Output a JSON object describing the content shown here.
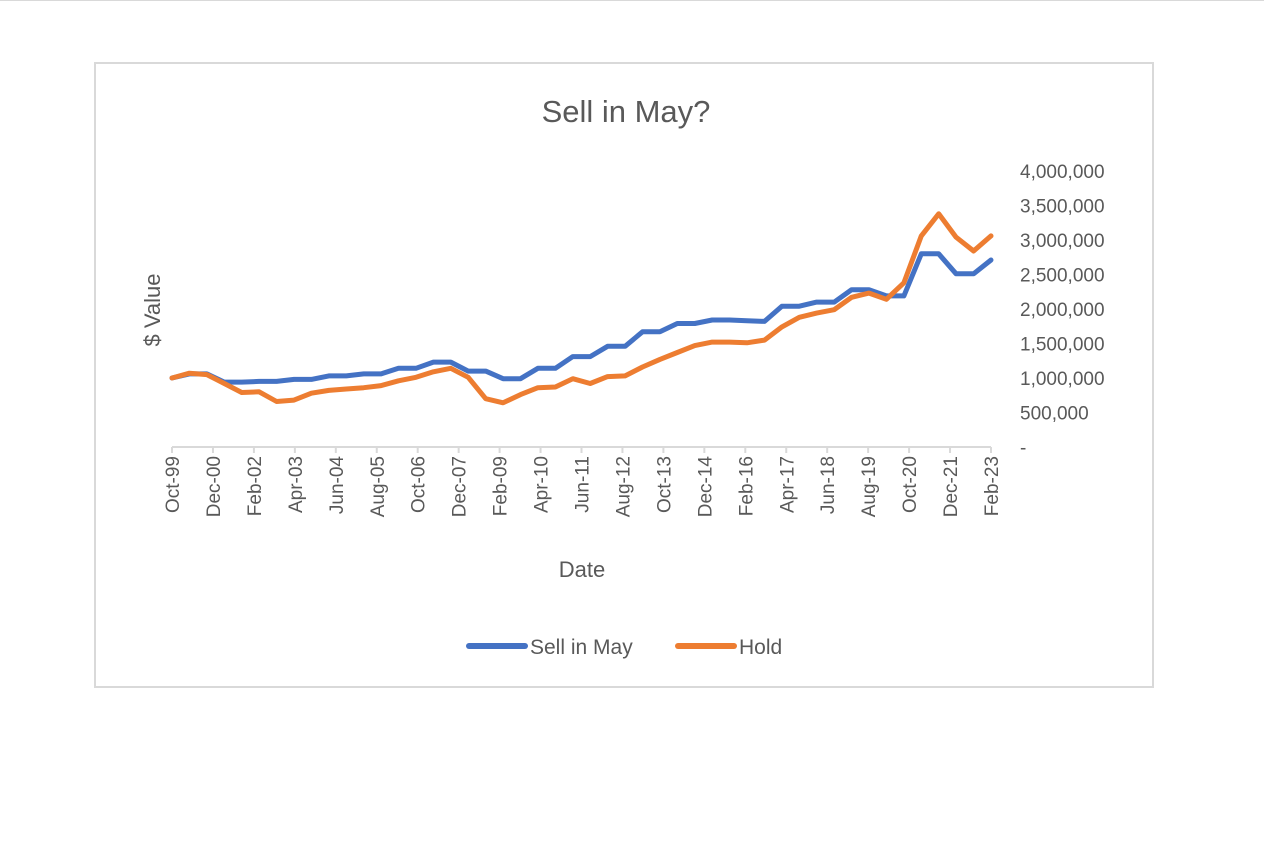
{
  "chart_data": {
    "type": "line",
    "title": "Sell in May?",
    "xlabel": "Date",
    "ylabel": "$ Value",
    "ylim": [
      0,
      4000000
    ],
    "y_ticks": [
      0,
      500000,
      1000000,
      1500000,
      2000000,
      2500000,
      3000000,
      3500000,
      4000000
    ],
    "y_tick_labels": [
      "-",
      "500,000",
      "1,000,000",
      "1,500,000",
      "2,000,000",
      "2,500,000",
      "3,000,000",
      "3,500,000",
      "4,000,000"
    ],
    "y_axis_side": "right",
    "grid": false,
    "legend_position": "bottom",
    "x_tick_labels": [
      "Oct-99",
      "Dec-00",
      "Feb-02",
      "Apr-03",
      "Jun-04",
      "Aug-05",
      "Oct-06",
      "Dec-07",
      "Feb-09",
      "Apr-10",
      "Jun-11",
      "Aug-12",
      "Oct-13",
      "Dec-14",
      "Feb-16",
      "Apr-17",
      "Jun-18",
      "Aug-19",
      "Oct-20",
      "Dec-21",
      "Feb-23"
    ],
    "x": [
      "Oct-99",
      "Apr-00",
      "Oct-00",
      "Apr-01",
      "Oct-01",
      "Apr-02",
      "Oct-02",
      "Apr-03",
      "Oct-03",
      "Apr-04",
      "Oct-04",
      "Apr-05",
      "Oct-05",
      "Apr-06",
      "Oct-06",
      "Apr-07",
      "Oct-07",
      "Apr-08",
      "Oct-08",
      "Apr-09",
      "Oct-09",
      "Apr-10",
      "Oct-10",
      "Apr-11",
      "Oct-11",
      "Apr-12",
      "Oct-12",
      "Apr-13",
      "Oct-13",
      "Apr-14",
      "Oct-14",
      "Apr-15",
      "Oct-15",
      "Apr-16",
      "Oct-16",
      "Apr-17",
      "Oct-17",
      "Apr-18",
      "Oct-18",
      "Apr-19",
      "Oct-19",
      "Apr-20",
      "Oct-20",
      "Apr-21",
      "Oct-21",
      "Apr-22",
      "Oct-22",
      "Apr-23"
    ],
    "series": [
      {
        "name": "Sell in May",
        "color": "#4472C4",
        "values": [
          1000000,
          1060000,
          1060000,
          940000,
          940000,
          950000,
          950000,
          980000,
          980000,
          1030000,
          1030000,
          1060000,
          1060000,
          1140000,
          1140000,
          1230000,
          1230000,
          1100000,
          1100000,
          990000,
          990000,
          1140000,
          1140000,
          1310000,
          1310000,
          1460000,
          1460000,
          1670000,
          1670000,
          1790000,
          1790000,
          1840000,
          1840000,
          1830000,
          1820000,
          2040000,
          2040000,
          2100000,
          2100000,
          2280000,
          2280000,
          2190000,
          2190000,
          2800000,
          2800000,
          2510000,
          2510000,
          2710000
        ]
      },
      {
        "name": "Hold",
        "color": "#ED7D31",
        "values": [
          1000000,
          1070000,
          1050000,
          920000,
          790000,
          800000,
          660000,
          680000,
          780000,
          820000,
          840000,
          860000,
          890000,
          960000,
          1010000,
          1090000,
          1140000,
          1010000,
          700000,
          640000,
          760000,
          860000,
          870000,
          990000,
          920000,
          1020000,
          1030000,
          1160000,
          1270000,
          1370000,
          1470000,
          1520000,
          1520000,
          1510000,
          1550000,
          1740000,
          1880000,
          1940000,
          1990000,
          2170000,
          2230000,
          2140000,
          2380000,
          3060000,
          3380000,
          3040000,
          2840000,
          3060000
        ]
      }
    ]
  }
}
